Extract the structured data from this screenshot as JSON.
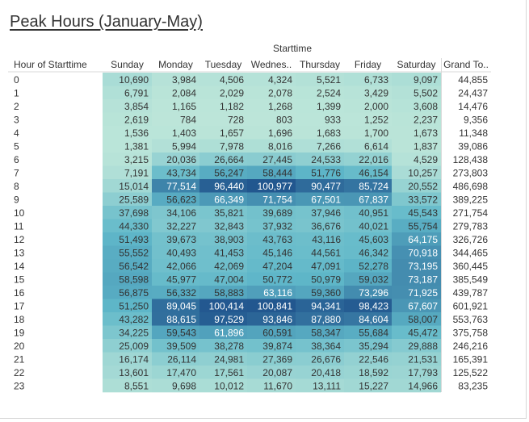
{
  "title": "Peak Hours (January-May)",
  "column_group_label": "Starttime",
  "row_header": "Hour of Starttime",
  "columns": [
    "Sunday",
    "Monday",
    "Tuesday",
    "Wednes..",
    "Thursday",
    "Friday",
    "Saturday",
    "Grand To.."
  ],
  "colors": {
    "low": "#bde6d9",
    "mid": "#5fb7c9",
    "high": "#22578f",
    "total_bg": "#ffffff"
  },
  "chart_data": {
    "type": "heatmap",
    "title": "Peak Hours (January-May)",
    "xlabel": "Starttime",
    "ylabel": "Hour of Starttime",
    "x_categories": [
      "Sunday",
      "Monday",
      "Tuesday",
      "Wednes..",
      "Thursday",
      "Friday",
      "Saturday"
    ],
    "y_categories": [
      "0",
      "1",
      "2",
      "3",
      "4",
      "5",
      "6",
      "7",
      "8",
      "9",
      "10",
      "11",
      "12",
      "13",
      "14",
      "15",
      "16",
      "17",
      "18",
      "19",
      "20",
      "21",
      "22",
      "23"
    ],
    "values": [
      [
        "10,690",
        "3,984",
        "4,506",
        "4,324",
        "5,521",
        "6,733",
        "9,097"
      ],
      [
        "6,791",
        "2,084",
        "2,029",
        "2,078",
        "2,524",
        "3,429",
        "5,502"
      ],
      [
        "3,854",
        "1,165",
        "1,182",
        "1,268",
        "1,399",
        "2,000",
        "3,608"
      ],
      [
        "2,619",
        "784",
        "728",
        "803",
        "933",
        "1,252",
        "2,237"
      ],
      [
        "1,536",
        "1,403",
        "1,657",
        "1,696",
        "1,683",
        "1,700",
        "1,673"
      ],
      [
        "1,381",
        "5,994",
        "7,978",
        "8,016",
        "7,266",
        "6,614",
        "1,837"
      ],
      [
        "3,215",
        "20,036",
        "26,664",
        "27,445",
        "24,533",
        "22,016",
        "4,529"
      ],
      [
        "7,191",
        "43,734",
        "56,247",
        "58,444",
        "51,776",
        "46,154",
        "10,257"
      ],
      [
        "15,014",
        "77,514",
        "96,440",
        "100,977",
        "90,477",
        "85,724",
        "20,552"
      ],
      [
        "25,589",
        "56,623",
        "66,349",
        "71,754",
        "67,501",
        "67,837",
        "33,572"
      ],
      [
        "37,698",
        "34,106",
        "35,821",
        "39,689",
        "37,946",
        "40,951",
        "45,543"
      ],
      [
        "44,330",
        "32,227",
        "32,843",
        "37,932",
        "36,676",
        "40,021",
        "55,754"
      ],
      [
        "51,493",
        "39,673",
        "38,903",
        "43,763",
        "43,116",
        "45,603",
        "64,175"
      ],
      [
        "55,552",
        "40,493",
        "41,453",
        "45,146",
        "44,561",
        "46,342",
        "70,918"
      ],
      [
        "56,542",
        "42,066",
        "42,069",
        "47,204",
        "47,091",
        "52,278",
        "73,195"
      ],
      [
        "58,598",
        "45,977",
        "47,004",
        "50,772",
        "50,979",
        "59,032",
        "73,187"
      ],
      [
        "56,875",
        "56,332",
        "58,883",
        "63,116",
        "59,360",
        "73,296",
        "71,925"
      ],
      [
        "51,250",
        "89,045",
        "100,414",
        "100,841",
        "94,341",
        "98,423",
        "67,607"
      ],
      [
        "43,282",
        "88,615",
        "97,529",
        "93,846",
        "87,880",
        "84,604",
        "58,007"
      ],
      [
        "34,225",
        "59,543",
        "61,896",
        "60,591",
        "58,347",
        "55,684",
        "45,472"
      ],
      [
        "25,009",
        "39,509",
        "38,278",
        "39,874",
        "38,364",
        "35,294",
        "29,888"
      ],
      [
        "16,174",
        "26,114",
        "24,981",
        "27,369",
        "26,676",
        "22,546",
        "21,531"
      ],
      [
        "13,601",
        "17,470",
        "17,561",
        "20,087",
        "20,418",
        "18,592",
        "17,793"
      ],
      [
        "8,551",
        "9,698",
        "10,012",
        "11,670",
        "13,111",
        "15,227",
        "14,966"
      ]
    ],
    "grand_totals": [
      "44,855",
      "24,437",
      "14,476",
      "9,356",
      "11,348",
      "39,086",
      "128,438",
      "273,803",
      "486,698",
      "389,225",
      "271,754",
      "279,783",
      "326,726",
      "344,465",
      "360,445",
      "385,549",
      "439,787",
      "601,921",
      "553,763",
      "375,758",
      "246,216",
      "165,391",
      "125,522",
      "83,235"
    ],
    "color_range": [
      0,
      101000
    ],
    "legend": "none"
  }
}
